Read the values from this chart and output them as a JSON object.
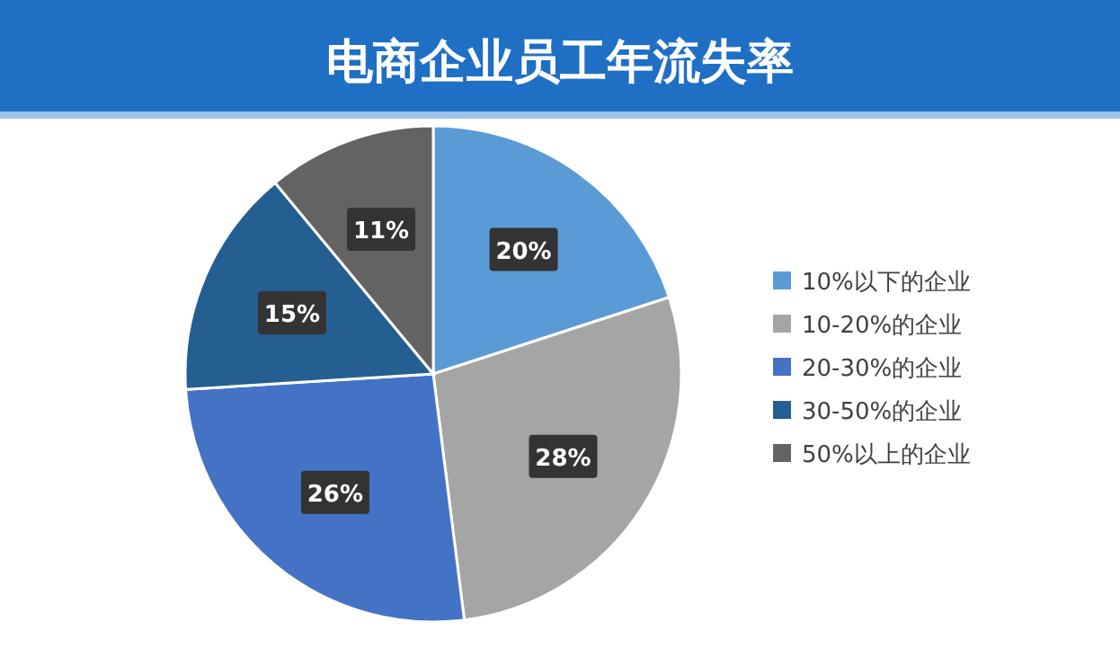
{
  "chart_data": {
    "type": "pie",
    "title": "电商企业员工年流失率",
    "categories": [
      "10%以下的企业",
      "10-20%的企业",
      "20-30%的企业",
      "30-50%的企业",
      "50%以上的企业"
    ],
    "values": [
      20,
      28,
      26,
      15,
      11
    ],
    "value_labels": [
      "20%",
      "28%",
      "26%",
      "15%",
      "11%"
    ],
    "colors": [
      "#5b9bd5",
      "#a5a5a5",
      "#4472c4",
      "#255e91",
      "#636363"
    ],
    "legend": "right"
  }
}
